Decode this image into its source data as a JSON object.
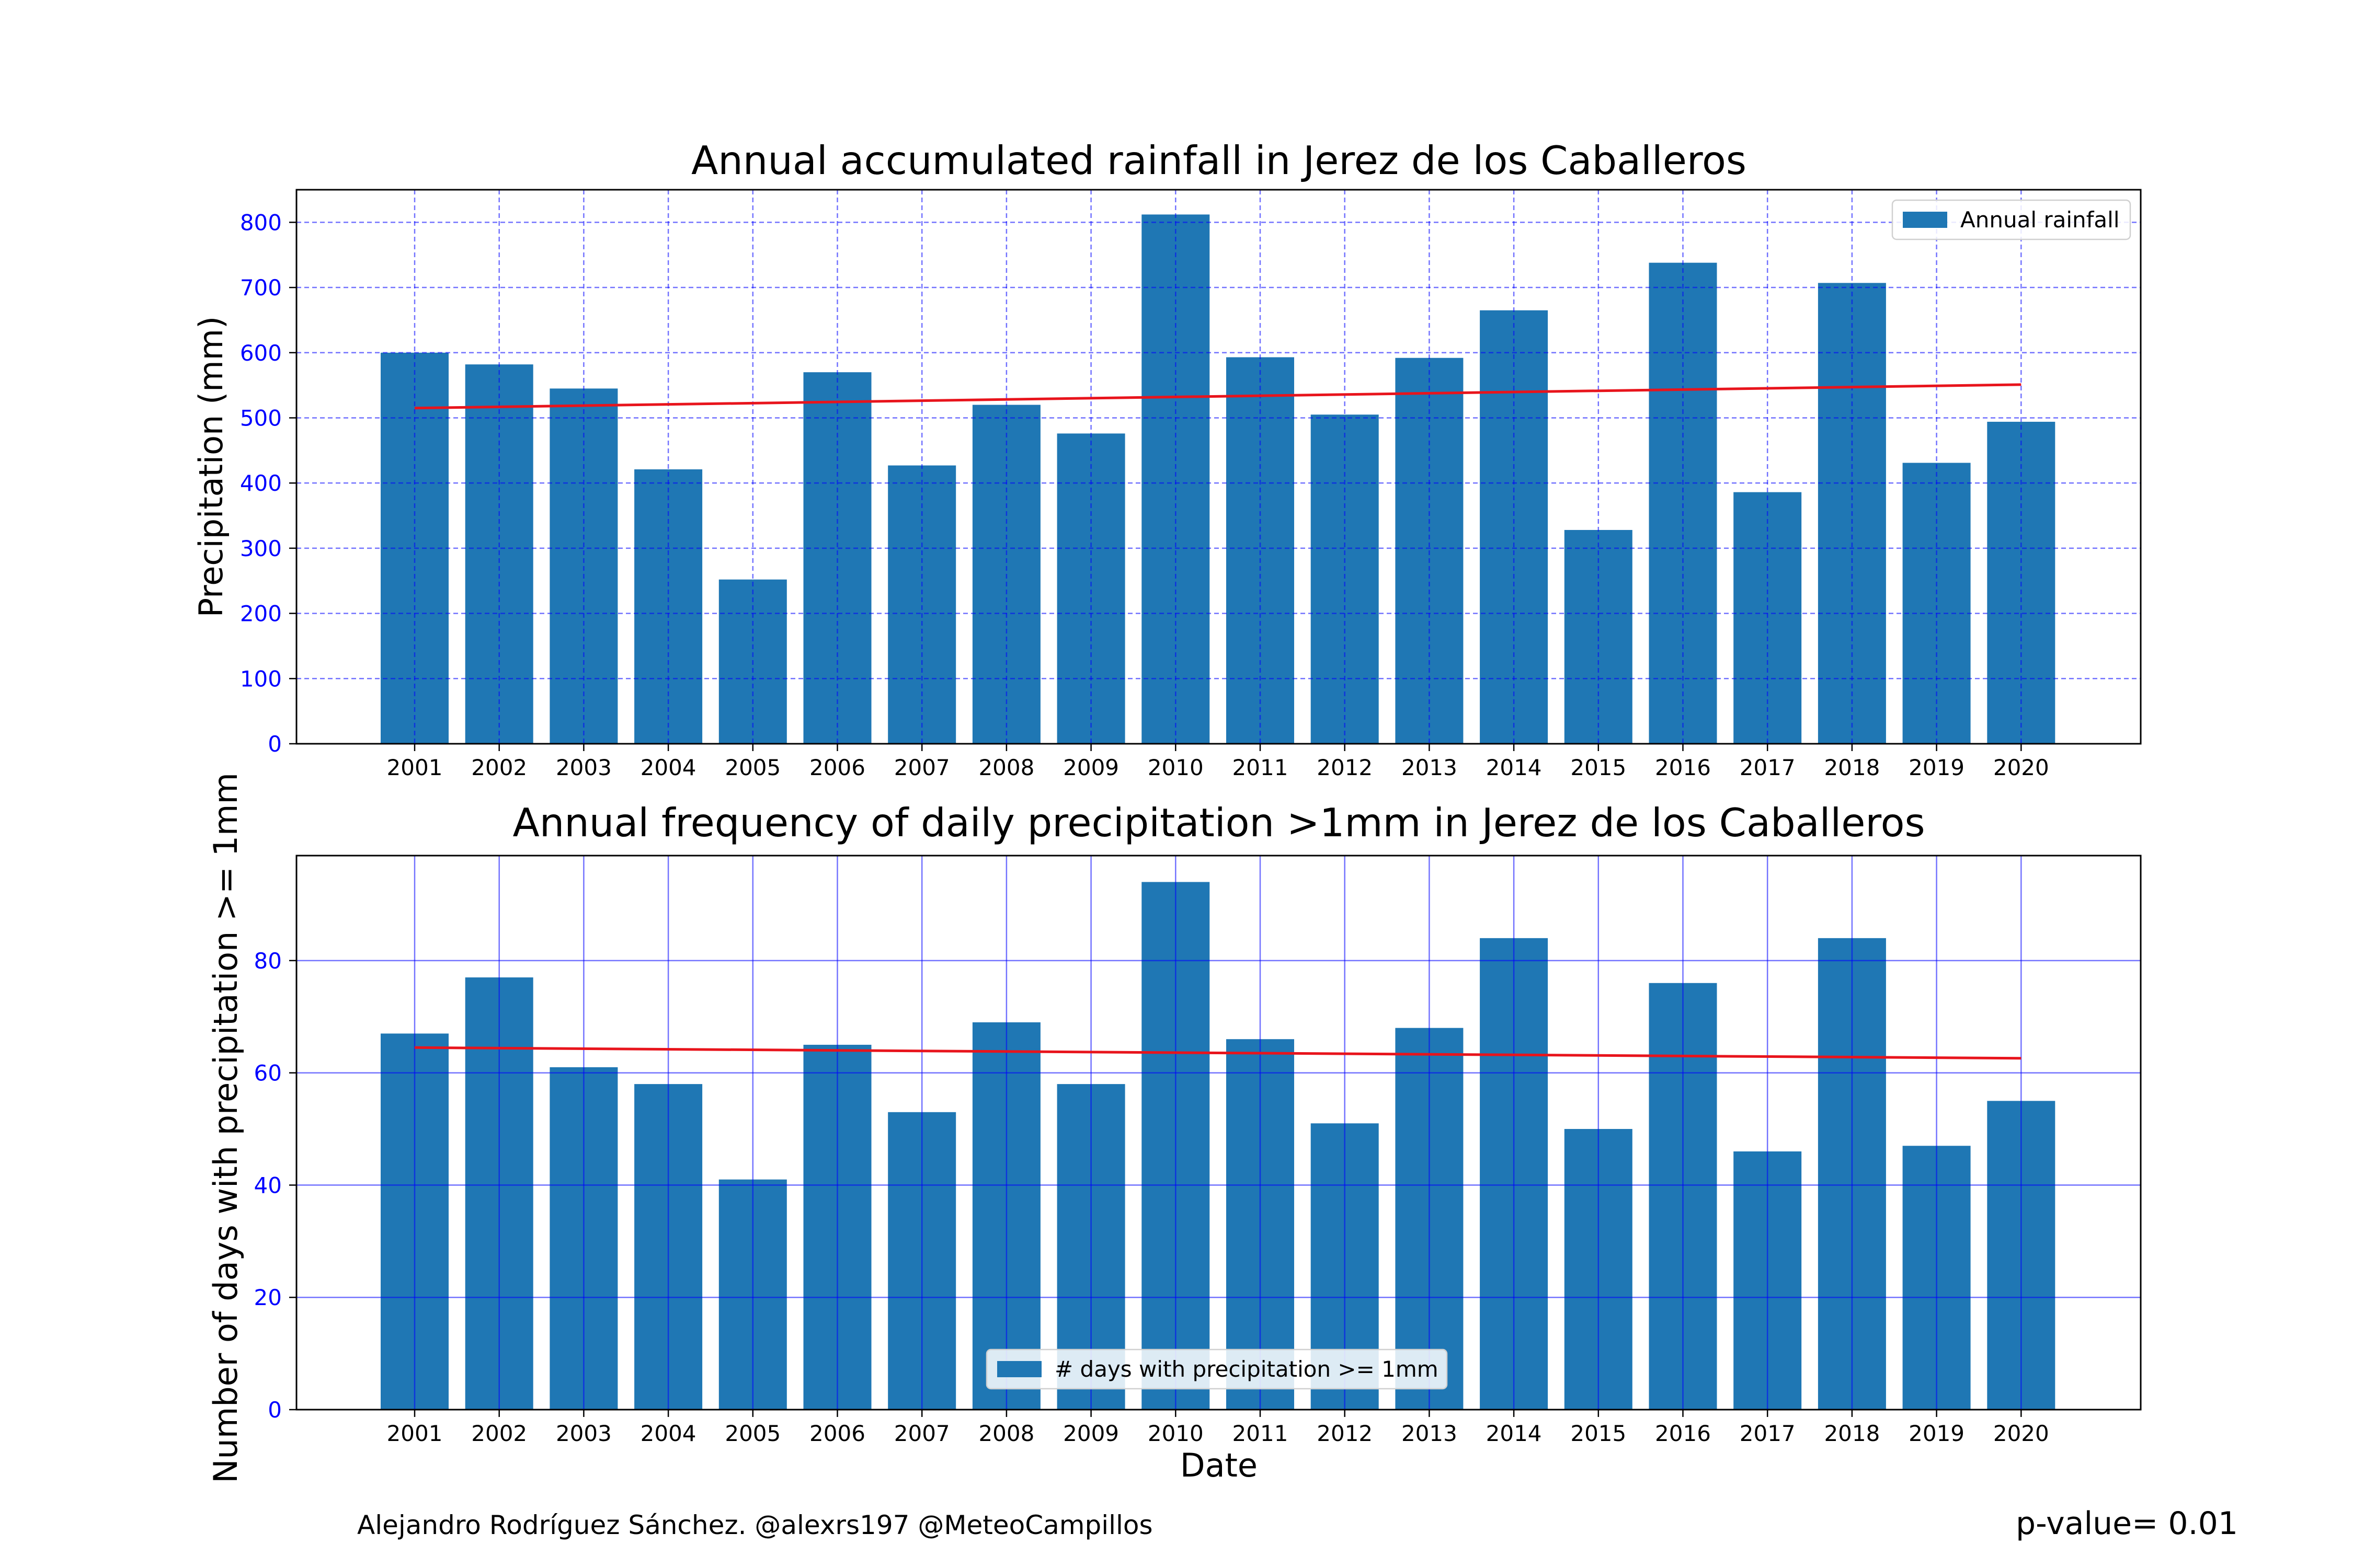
{
  "chart_data": [
    {
      "type": "bar",
      "title": "Annual accumulated rainfall in Jerez de los Caballeros",
      "xlabel": "",
      "ylabel": "Precipitation (mm)",
      "ylim": [
        0,
        850
      ],
      "yticks": [
        0,
        100,
        200,
        300,
        400,
        500,
        600,
        700,
        800
      ],
      "grid": "dashed",
      "legend_position": "upper right",
      "categories": [
        "2001",
        "2002",
        "2003",
        "2004",
        "2005",
        "2006",
        "2007",
        "2008",
        "2009",
        "2010",
        "2011",
        "2012",
        "2013",
        "2014",
        "2015",
        "2016",
        "2017",
        "2018",
        "2019",
        "2020"
      ],
      "series": [
        {
          "name": "Annual rainfall",
          "values": [
            600,
            582,
            545,
            421,
            252,
            570,
            427,
            520,
            476,
            812,
            593,
            505,
            592,
            665,
            328,
            738,
            386,
            707,
            431,
            494
          ]
        }
      ],
      "trend": {
        "start": 515,
        "end": 551,
        "color": "#e8141c"
      },
      "bar_color": "#1f77b4"
    },
    {
      "type": "bar",
      "title": "Annual frequency of daily precipitation >1mm in Jerez de los Caballeros",
      "xlabel": "Date",
      "ylabel": "Number of days with precipitation >= 1mm",
      "ylim": [
        0,
        98.7
      ],
      "yticks": [
        0,
        20,
        40,
        60,
        80
      ],
      "grid": "solid",
      "legend_position": "lower center",
      "categories": [
        "2001",
        "2002",
        "2003",
        "2004",
        "2005",
        "2006",
        "2007",
        "2008",
        "2009",
        "2010",
        "2011",
        "2012",
        "2013",
        "2014",
        "2015",
        "2016",
        "2017",
        "2018",
        "2019",
        "2020"
      ],
      "series": [
        {
          "name": "# days with precipitation >= 1mm",
          "values": [
            67,
            77,
            61,
            58,
            41,
            65,
            53,
            69,
            58,
            94,
            66,
            51,
            68,
            84,
            50,
            76,
            46,
            84,
            47,
            55
          ]
        }
      ],
      "trend": {
        "start": 64.5,
        "end": 62.6,
        "color": "#e8141c"
      },
      "bar_color": "#1f77b4"
    }
  ],
  "footer": {
    "credit": "Alejandro Rodríguez Sánchez. @alexrs197 @MeteoCampillos",
    "pvalue": "p-value= 0.01"
  },
  "colors": {
    "bar": "#1f77b4",
    "trend": "#e8141c",
    "grid": "#0000ff",
    "ytick": "#0000ff"
  }
}
